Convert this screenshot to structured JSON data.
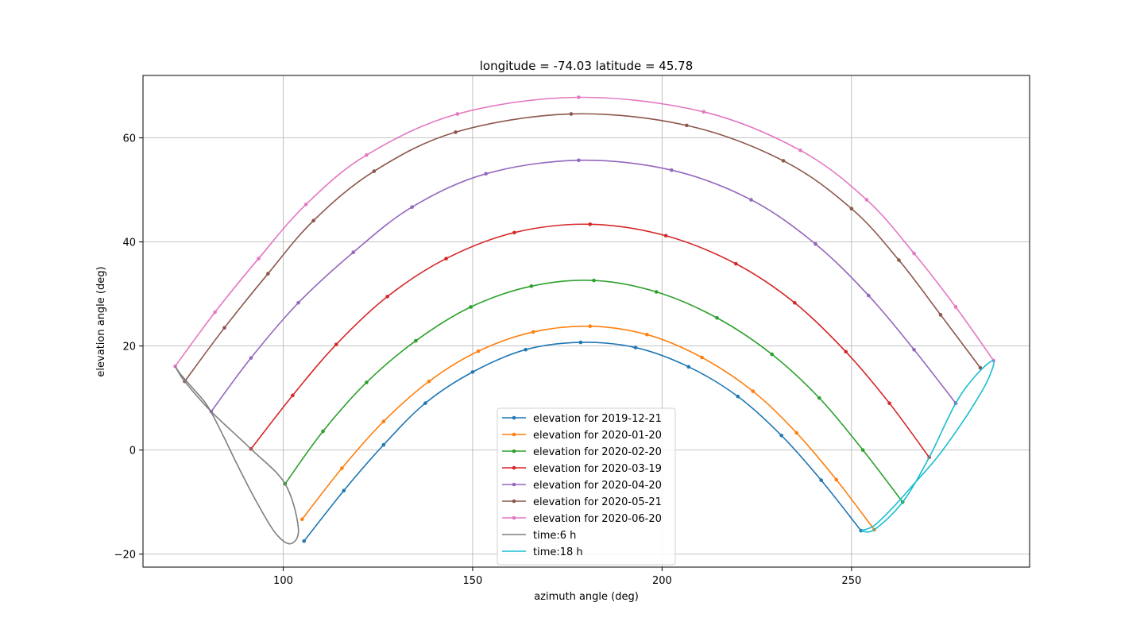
{
  "chart_data": {
    "type": "line",
    "title": "longitude = -74.03 latitude = 45.78",
    "xlabel": "azimuth angle (deg)",
    "ylabel": "elevation angle (deg)",
    "xlim": [
      63,
      297
    ],
    "ylim": [
      -22.5,
      72
    ],
    "xticks": [
      100,
      150,
      200,
      250
    ],
    "yticks": [
      -20,
      0,
      20,
      40,
      60
    ],
    "grid": true,
    "legend_position": "lower center",
    "series": [
      {
        "name": "elevation for 2019-12-21",
        "color": "#1f77b4",
        "points": [
          [
            105.5,
            -17.5
          ],
          [
            116,
            -7.8
          ],
          [
            126.5,
            1
          ],
          [
            137.5,
            9
          ],
          [
            150,
            15
          ],
          [
            164,
            19.3
          ],
          [
            178.5,
            20.7
          ],
          [
            193,
            19.7
          ],
          [
            207,
            16
          ],
          [
            220,
            10.3
          ],
          [
            231.5,
            2.8
          ],
          [
            242,
            -5.8
          ],
          [
            252.5,
            -15.5
          ]
        ]
      },
      {
        "name": "elevation for 2020-01-20",
        "color": "#ff7f0e",
        "points": [
          [
            105,
            -13.3
          ],
          [
            115.5,
            -3.5
          ],
          [
            126.5,
            5.5
          ],
          [
            138.5,
            13.2
          ],
          [
            151.5,
            19
          ],
          [
            166,
            22.7
          ],
          [
            181,
            23.8
          ],
          [
            196,
            22.2
          ],
          [
            210.5,
            17.8
          ],
          [
            224,
            11.3
          ],
          [
            235.5,
            3.3
          ],
          [
            246,
            -5.7
          ],
          [
            256,
            -15.3
          ]
        ]
      },
      {
        "name": "elevation for 2020-02-20",
        "color": "#2ca02c",
        "points": [
          [
            100.5,
            -6.5
          ],
          [
            110.5,
            3.6
          ],
          [
            122,
            13
          ],
          [
            135,
            21
          ],
          [
            149.5,
            27.5
          ],
          [
            165.5,
            31.5
          ],
          [
            182,
            32.6
          ],
          [
            198.5,
            30.4
          ],
          [
            214.5,
            25.4
          ],
          [
            229,
            18.4
          ],
          [
            241.5,
            10
          ],
          [
            253,
            0
          ],
          [
            263.5,
            -10
          ]
        ]
      },
      {
        "name": "elevation for 2020-03-19",
        "color": "#d62728",
        "points": [
          [
            91.5,
            0.2
          ],
          [
            102.5,
            10.5
          ],
          [
            114,
            20.3
          ],
          [
            127.5,
            29.5
          ],
          [
            143,
            36.8
          ],
          [
            161,
            41.8
          ],
          [
            181,
            43.4
          ],
          [
            201,
            41.2
          ],
          [
            219.5,
            35.8
          ],
          [
            235,
            28.3
          ],
          [
            248.5,
            18.9
          ],
          [
            260,
            9
          ],
          [
            270.5,
            -1.4
          ]
        ]
      },
      {
        "name": "elevation for 2020-04-20",
        "color": "#9467bd",
        "points": [
          [
            81,
            7.4
          ],
          [
            91.5,
            17.7
          ],
          [
            104,
            28.3
          ],
          [
            118.5,
            38
          ],
          [
            134,
            46.7
          ],
          [
            153.5,
            53.1
          ],
          [
            178,
            55.7
          ],
          [
            202.5,
            53.8
          ],
          [
            223.5,
            48.1
          ],
          [
            240.5,
            39.6
          ],
          [
            254.5,
            29.7
          ],
          [
            266.5,
            19.3
          ],
          [
            277.5,
            9
          ]
        ]
      },
      {
        "name": "elevation for 2020-05-21",
        "color": "#8c564b",
        "points": [
          [
            74,
            13.2
          ],
          [
            84.5,
            23.5
          ],
          [
            96,
            33.9
          ],
          [
            108,
            44.1
          ],
          [
            124,
            53.6
          ],
          [
            145.5,
            61.1
          ],
          [
            176,
            64.6
          ],
          [
            206.5,
            62.4
          ],
          [
            232,
            55.6
          ],
          [
            250,
            46.4
          ],
          [
            262.5,
            36.5
          ],
          [
            273.5,
            26
          ],
          [
            284,
            15.8
          ]
        ]
      },
      {
        "name": "elevation for 2020-06-20",
        "color": "#e377c2",
        "points": [
          [
            71.5,
            16.1
          ],
          [
            82,
            26.5
          ],
          [
            93.5,
            36.8
          ],
          [
            106,
            47.2
          ],
          [
            122,
            56.7
          ],
          [
            146,
            64.6
          ],
          [
            178,
            67.8
          ],
          [
            211,
            65
          ],
          [
            236.5,
            57.6
          ],
          [
            254,
            48.1
          ],
          [
            266.5,
            37.8
          ],
          [
            277.5,
            27.5
          ],
          [
            287.5,
            17.2
          ]
        ]
      },
      {
        "name": "time:6 h",
        "color": "#7f7f7f",
        "points": [
          [
            71.5,
            16.1
          ],
          [
            74,
            13.2
          ],
          [
            81,
            7.4
          ],
          [
            91.5,
            0.2
          ],
          [
            100.5,
            -6.5
          ],
          [
            104,
            -15
          ],
          [
            102,
            -18
          ],
          [
            98,
            -16
          ],
          [
            93,
            -10
          ],
          [
            88,
            -3
          ],
          [
            84,
            3
          ],
          [
            80,
            8.5
          ],
          [
            76,
            12
          ],
          [
            73,
            14.5
          ],
          [
            71.5,
            16.1
          ]
        ]
      },
      {
        "name": "time:18 h",
        "color": "#17becf",
        "points": [
          [
            252.5,
            -15.5
          ],
          [
            256,
            -15.3
          ],
          [
            263.5,
            -10
          ],
          [
            270.5,
            -1.4
          ],
          [
            277.5,
            9
          ],
          [
            283,
            14.5
          ],
          [
            287.5,
            17.2
          ],
          [
            286,
            13.5
          ],
          [
            282.5,
            9
          ],
          [
            278,
            4
          ],
          [
            272.5,
            -1.5
          ],
          [
            266.5,
            -6.5
          ],
          [
            261,
            -11
          ],
          [
            256,
            -14.5
          ],
          [
            252.5,
            -15.5
          ]
        ]
      }
    ]
  }
}
